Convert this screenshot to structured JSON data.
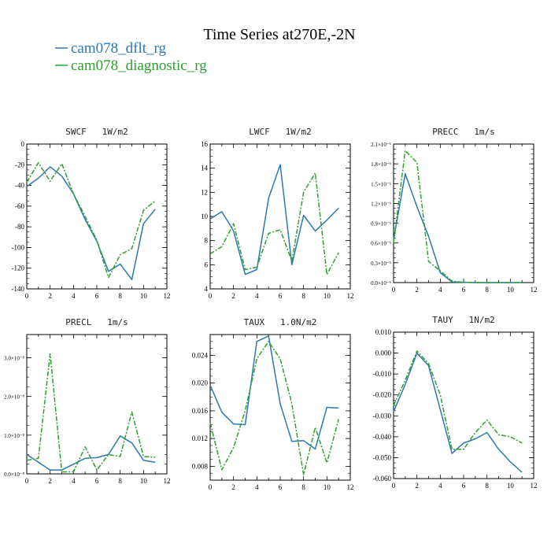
{
  "figure": {
    "title": "Time Series at270E,-2N",
    "legend": [
      {
        "label": "cam078_dflt_rg",
        "color": "#2a7ab0"
      },
      {
        "label": "cam078_diagnostic_rg",
        "color": "#2ca02c"
      }
    ]
  },
  "colors": {
    "series1": "#2a7ab0",
    "series2": "#2ca02c",
    "axis": "#000000"
  },
  "chart_data": [
    {
      "type": "line",
      "title": "SWCF   1W/m2",
      "x": [
        0,
        1,
        2,
        3,
        4,
        5,
        6,
        7,
        8,
        9,
        10,
        11
      ],
      "xlim": [
        0,
        12
      ],
      "xticks": [
        0,
        2,
        4,
        6,
        8,
        10,
        12
      ],
      "ylim": [
        -140,
        0
      ],
      "yticks": [
        -140,
        -120,
        -100,
        -80,
        -60,
        -40,
        -20,
        0
      ],
      "ytick_labels": [
        "-140",
        "-120",
        "-100",
        "-80",
        "-60",
        "-40",
        "-20",
        "0"
      ],
      "series": [
        {
          "name": "cam078_dflt_rg",
          "values": [
            -41,
            -33,
            -22,
            -31,
            -48,
            -73,
            -94,
            -123,
            -116,
            -131,
            -77,
            -63
          ]
        },
        {
          "name": "cam078_diagnostic_rg",
          "values": [
            -37,
            -18,
            -36,
            -19,
            -48,
            -70,
            -93,
            -129,
            -107,
            -101,
            -64,
            -55
          ]
        }
      ]
    },
    {
      "type": "line",
      "title": "LWCF   1W/m2",
      "x": [
        0,
        1,
        2,
        3,
        4,
        5,
        6,
        7,
        8,
        9,
        10,
        11
      ],
      "xlim": [
        0,
        12
      ],
      "xticks": [
        0,
        2,
        4,
        6,
        8,
        10,
        12
      ],
      "ylim": [
        4,
        16
      ],
      "yticks": [
        4,
        6,
        8,
        10,
        12,
        14,
        16
      ],
      "ytick_labels": [
        "4",
        "6",
        "8",
        "10",
        "12",
        "14",
        "16"
      ],
      "series": [
        {
          "name": "cam078_dflt_rg",
          "values": [
            9.8,
            10.4,
            8.8,
            5.2,
            5.6,
            11.5,
            14.3,
            6.0,
            10.1,
            8.8,
            9.7,
            10.7
          ]
        },
        {
          "name": "cam078_diagnostic_rg",
          "values": [
            6.9,
            7.5,
            9.4,
            5.6,
            5.8,
            8.6,
            8.9,
            6.3,
            12.0,
            13.6,
            5.2,
            7.0
          ]
        }
      ]
    },
    {
      "type": "line",
      "title": "PRECC   1m/s",
      "x": [
        0,
        1,
        2,
        3,
        4,
        5,
        6,
        7,
        8,
        9,
        10,
        11
      ],
      "xlim": [
        0,
        12
      ],
      "xticks": [
        0,
        2,
        4,
        6,
        8,
        10,
        12
      ],
      "ylim": [
        0,
        2.1
      ],
      "yticks": [
        0,
        0.3,
        0.6,
        0.9,
        1.2,
        1.5,
        1.8,
        2.1
      ],
      "ytick_labels": [
        "0.0×10⁻⁶",
        "0.3×10⁻⁶",
        "0.6×10⁻⁶",
        "0.9×10⁻⁶",
        "1.2×10⁻⁶",
        "1.5×10⁻⁶",
        "1.8×10⁻⁶",
        "2.1×10⁻⁶"
      ],
      "series": [
        {
          "name": "cam078_dflt_rg",
          "values": [
            0.65,
            1.65,
            1.15,
            0.7,
            0.15,
            0.01,
            0.005,
            0.0,
            0.0,
            0.0,
            0.0,
            0.0
          ]
        },
        {
          "name": "cam078_diagnostic_rg",
          "values": [
            0.6,
            2.0,
            1.82,
            0.32,
            0.18,
            0.02,
            0.005,
            0.0,
            0.0,
            0.0,
            0.0,
            0.0
          ]
        }
      ]
    },
    {
      "type": "line",
      "title": "PRECL   1m/s",
      "x": [
        0,
        1,
        2,
        3,
        4,
        5,
        6,
        7,
        8,
        9,
        10,
        11
      ],
      "xlim": [
        0,
        12
      ],
      "xticks": [
        0,
        2,
        4,
        6,
        8,
        10,
        12
      ],
      "ylim": [
        0,
        3.6
      ],
      "yticks": [
        0,
        1,
        2,
        3
      ],
      "ytick_labels": [
        "0.0×10⁻⁸",
        "1.0×10⁻⁸",
        "2.0×10⁻⁸",
        "3.0×10⁻⁸"
      ],
      "series": [
        {
          "name": "cam078_dflt_rg",
          "values": [
            0.5,
            0.3,
            0.1,
            0.1,
            0.25,
            0.4,
            0.42,
            0.5,
            0.98,
            0.8,
            0.35,
            0.3
          ]
        },
        {
          "name": "cam078_diagnostic_rg",
          "values": [
            0.35,
            0.4,
            3.1,
            0.05,
            0.05,
            0.7,
            0.1,
            0.5,
            0.45,
            1.6,
            0.45,
            0.43
          ]
        }
      ]
    },
    {
      "type": "line",
      "title": "TAUX   1.0N/m2",
      "x": [
        0,
        1,
        2,
        3,
        4,
        5,
        6,
        7,
        8,
        9,
        10,
        11
      ],
      "xlim": [
        0,
        12
      ],
      "xticks": [
        0,
        2,
        4,
        6,
        8,
        10,
        12
      ],
      "ylim": [
        0.006,
        0.027
      ],
      "yticks": [
        0.008,
        0.012,
        0.016,
        0.02,
        0.024
      ],
      "ytick_labels": [
        "0.008",
        "0.012",
        "0.016",
        "0.020",
        "0.024"
      ],
      "series": [
        {
          "name": "cam078_dflt_rg",
          "values": [
            0.0197,
            0.0158,
            0.0141,
            0.014,
            0.026,
            0.0268,
            0.017,
            0.0116,
            0.0117,
            0.0105,
            0.0165,
            0.0164
          ]
        },
        {
          "name": "cam078_diagnostic_rg",
          "values": [
            0.0143,
            0.0075,
            0.0107,
            0.016,
            0.0235,
            0.026,
            0.0235,
            0.017,
            0.0068,
            0.0136,
            0.0085,
            0.0148
          ]
        }
      ]
    },
    {
      "type": "line",
      "title": "TAUY   1N/m2",
      "x": [
        0,
        1,
        2,
        3,
        4,
        5,
        6,
        7,
        8,
        9,
        10,
        11
      ],
      "xlim": [
        0,
        12
      ],
      "xticks": [
        0,
        2,
        4,
        6,
        8,
        10,
        12
      ],
      "ylim": [
        -0.06,
        0.01
      ],
      "yticks": [
        -0.06,
        -0.05,
        -0.04,
        -0.03,
        -0.02,
        -0.01,
        0.0,
        0.01
      ],
      "ytick_labels": [
        "-0.060",
        "-0.050",
        "-0.040",
        "-0.030",
        "-0.020",
        "-0.010",
        "0.000",
        "0.010"
      ],
      "series": [
        {
          "name": "cam078_dflt_rg",
          "values": [
            -0.028,
            -0.015,
            0.0,
            -0.006,
            -0.027,
            -0.048,
            -0.043,
            -0.041,
            -0.038,
            -0.046,
            -0.052,
            -0.057
          ]
        },
        {
          "name": "cam078_diagnostic_rg",
          "values": [
            -0.025,
            -0.013,
            0.001,
            -0.005,
            -0.02,
            -0.046,
            -0.046,
            -0.038,
            -0.032,
            -0.039,
            -0.04,
            -0.043
          ]
        }
      ]
    }
  ]
}
